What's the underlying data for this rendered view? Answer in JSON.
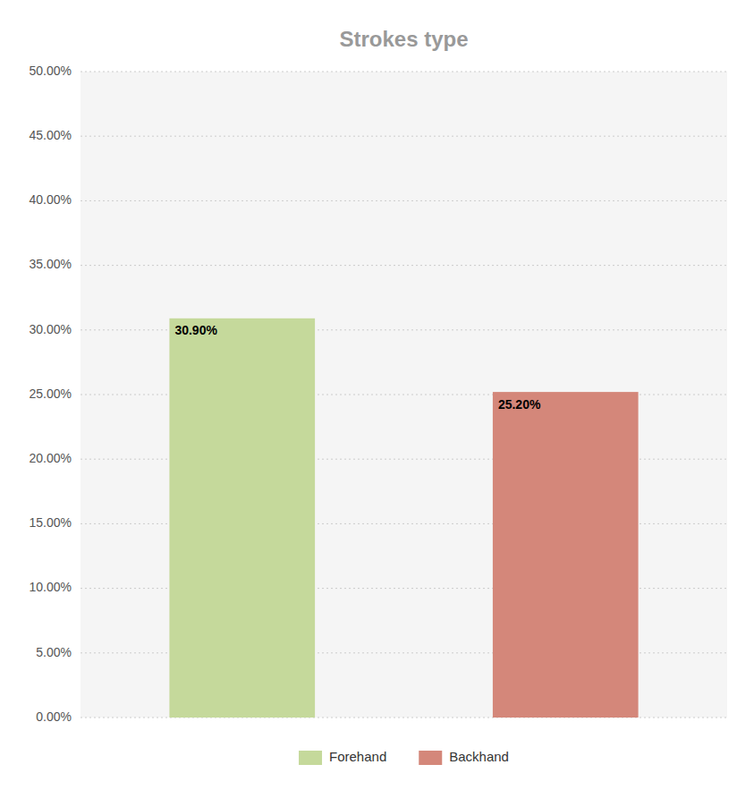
{
  "chart_data": {
    "type": "bar",
    "title": "Strokes type",
    "categories": [
      "Forehand",
      "Backhand"
    ],
    "values": [
      0.309,
      0.252
    ],
    "value_labels": [
      "30.90%",
      "25.20%"
    ],
    "colors": [
      "#c5d99b",
      "#d4877a"
    ],
    "ylim": [
      0,
      0.5
    ],
    "yticks": [
      {
        "value": 0.0,
        "label": "0.00%"
      },
      {
        "value": 0.05,
        "label": "5.00%"
      },
      {
        "value": 0.1,
        "label": "10.00%"
      },
      {
        "value": 0.15,
        "label": "15.00%"
      },
      {
        "value": 0.2,
        "label": "20.00%"
      },
      {
        "value": 0.25,
        "label": "25.00%"
      },
      {
        "value": 0.3,
        "label": "30.00%"
      },
      {
        "value": 0.35,
        "label": "35.00%"
      },
      {
        "value": 0.4,
        "label": "40.00%"
      },
      {
        "value": 0.45,
        "label": "45.00%"
      },
      {
        "value": 0.5,
        "label": "50.00%"
      }
    ],
    "grid": true,
    "legend": "bottom",
    "data_labels": true,
    "tick_labels": "y"
  }
}
